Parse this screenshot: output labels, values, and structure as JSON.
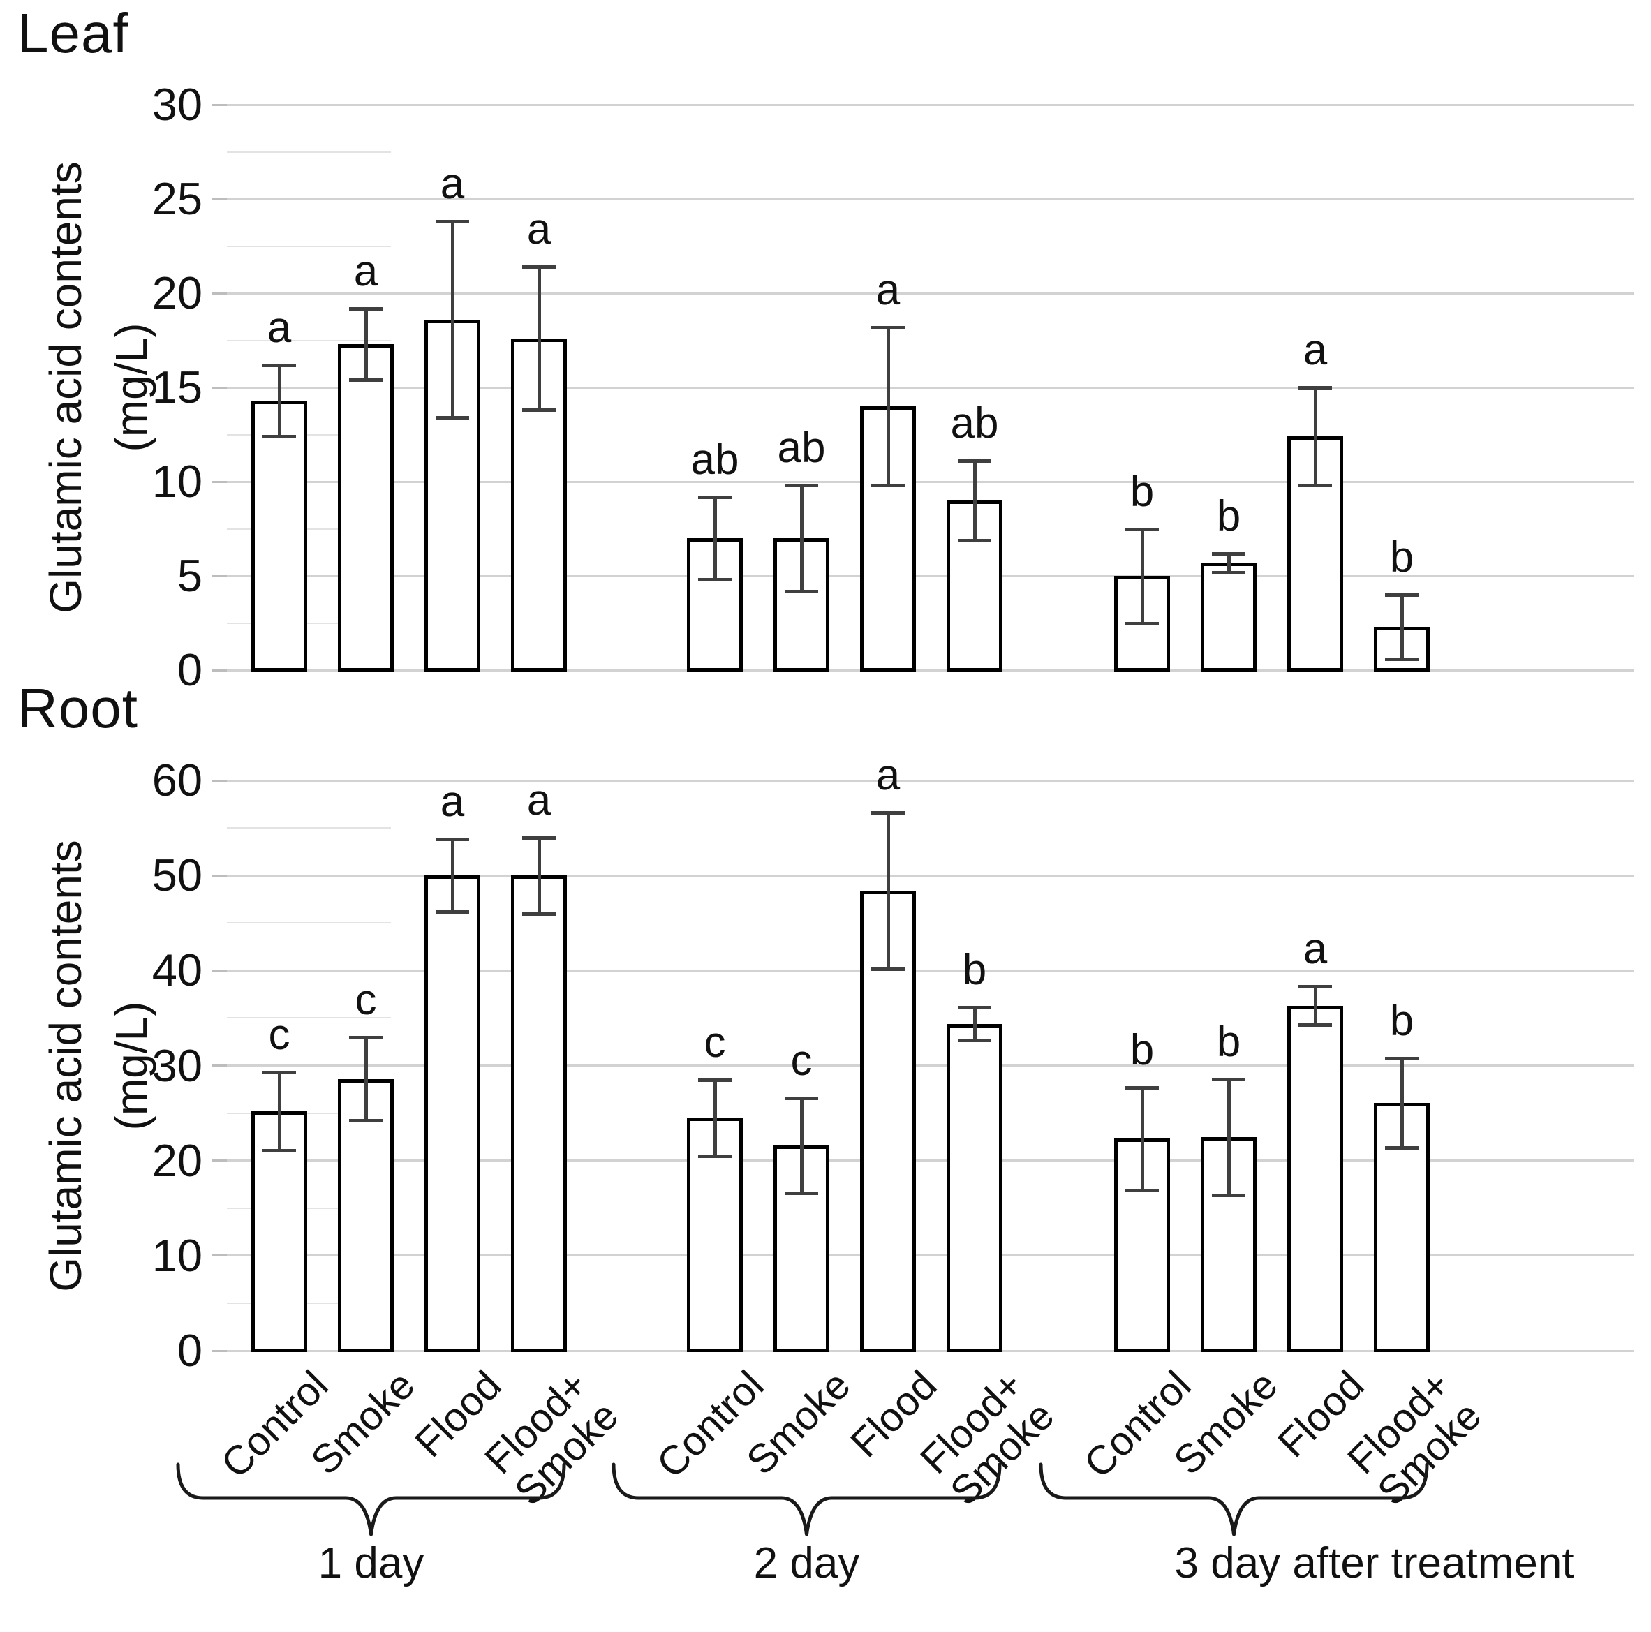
{
  "figure": {
    "panels": {
      "leaf": {
        "title": "Leaf",
        "ylabel_line1": "Glutamic acid contents",
        "ylabel_line2": "(mg/L)"
      },
      "root": {
        "title": "Root",
        "ylabel_line1": "Glutamic acid contents",
        "ylabel_line2": "(mg/L)"
      }
    },
    "colors": {
      "bar_fill": "#ffffff",
      "bar_border": "#000000",
      "gridline": "#d2d2d2",
      "error_bar": "#3f3f3f",
      "text": "#111111"
    }
  },
  "chart_data": [
    {
      "id": "leaf",
      "type": "bar",
      "title": "Leaf",
      "ylabel": "Glutamic acid contents (mg/L)",
      "xlabel": "",
      "ylim": [
        0,
        30
      ],
      "yticks": [
        0,
        5,
        10,
        15,
        20,
        25,
        30
      ],
      "grid": true,
      "legend": "none",
      "categories": [
        "Control",
        "Smoke",
        "Flood",
        "Flood+Smoke"
      ],
      "category_display": [
        [
          "Control"
        ],
        [
          "Smoke"
        ],
        [
          "Flood"
        ],
        [
          "Flood+",
          "Smoke"
        ]
      ],
      "groups": [
        {
          "label": "1 day",
          "values": [
            14.3,
            17.3,
            18.6,
            17.6
          ],
          "errors": [
            1.9,
            1.9,
            5.2,
            3.8
          ],
          "letters": [
            "a",
            "a",
            "a",
            "a"
          ]
        },
        {
          "label": "2 day",
          "values": [
            7.0,
            7.0,
            14.0,
            9.0
          ],
          "errors": [
            2.2,
            2.8,
            4.2,
            2.1
          ],
          "letters": [
            "ab",
            "ab",
            "a",
            "ab"
          ]
        },
        {
          "label": "3 day after treatment",
          "values": [
            5.0,
            5.7,
            12.4,
            2.3
          ],
          "errors": [
            2.5,
            0.5,
            2.6,
            1.7
          ],
          "letters": [
            "b",
            "b",
            "a",
            "b"
          ]
        }
      ],
      "show_x_labels": false,
      "show_braces": false
    },
    {
      "id": "root",
      "type": "bar",
      "title": "Root",
      "ylabel": "Glutamic acid contents (mg/L)",
      "xlabel": "",
      "ylim": [
        0,
        60
      ],
      "yticks": [
        0,
        10,
        20,
        30,
        40,
        50,
        60
      ],
      "grid": true,
      "legend": "none",
      "categories": [
        "Control",
        "Smoke",
        "Flood",
        "Flood+Smoke"
      ],
      "category_display": [
        [
          "Control"
        ],
        [
          "Smoke"
        ],
        [
          "Flood"
        ],
        [
          "Flood+",
          "Smoke"
        ]
      ],
      "groups": [
        {
          "label": "1 day",
          "values": [
            25.2,
            28.6,
            50.0,
            50.0
          ],
          "errors": [
            4.1,
            4.4,
            3.8,
            4.0
          ],
          "letters": [
            "c",
            "c",
            "a",
            "a"
          ]
        },
        {
          "label": "2 day",
          "values": [
            24.5,
            21.6,
            48.4,
            34.4
          ],
          "errors": [
            4.0,
            5.0,
            8.2,
            1.7
          ],
          "letters": [
            "c",
            "c",
            "a",
            "b"
          ]
        },
        {
          "label": "3 day after treatment",
          "values": [
            22.3,
            22.5,
            36.3,
            26.1
          ],
          "errors": [
            5.4,
            6.1,
            2.0,
            4.7
          ],
          "letters": [
            "b",
            "b",
            "a",
            "b"
          ]
        }
      ],
      "show_x_labels": true,
      "show_braces": true
    }
  ]
}
